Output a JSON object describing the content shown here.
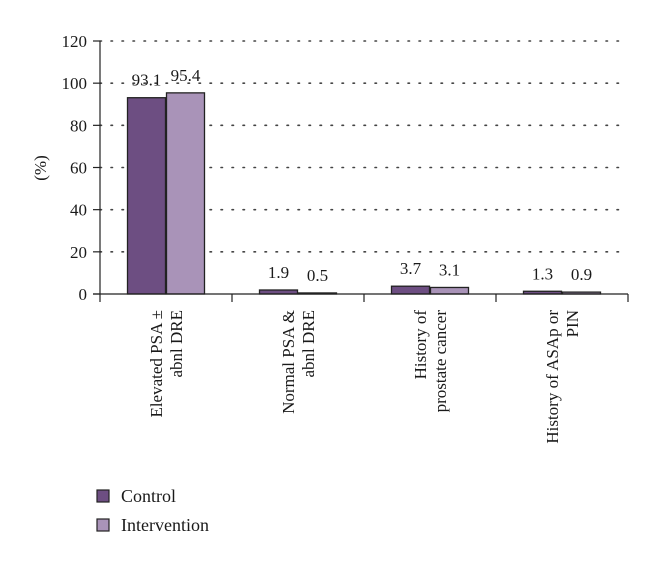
{
  "chart_data": {
    "type": "bar",
    "ylabel": "(%)",
    "ylim": [
      0,
      120
    ],
    "yticks": [
      0,
      20,
      40,
      60,
      80,
      100,
      120
    ],
    "grid": "horizontal-dotted",
    "legend_position": "bottom-left",
    "categories": [
      [
        "Elevated PSA ±",
        "abnl DRE"
      ],
      [
        "Normal PSA &",
        "abnl DRE"
      ],
      [
        "History of",
        "prostate cancer"
      ],
      [
        "History of ASAp or",
        "PIN"
      ]
    ],
    "series": [
      {
        "name": "Control",
        "color": "#6d4e82",
        "values": [
          93.1,
          1.9,
          3.7,
          1.3
        ],
        "labels": [
          "93.1",
          "1.9",
          "3.7",
          "1.3"
        ]
      },
      {
        "name": "Intervention",
        "color": "#a993b8",
        "values": [
          95.4,
          0.5,
          3.1,
          0.9
        ],
        "labels": [
          "95.4",
          "0.5",
          "3.1",
          "0.9"
        ]
      }
    ]
  }
}
